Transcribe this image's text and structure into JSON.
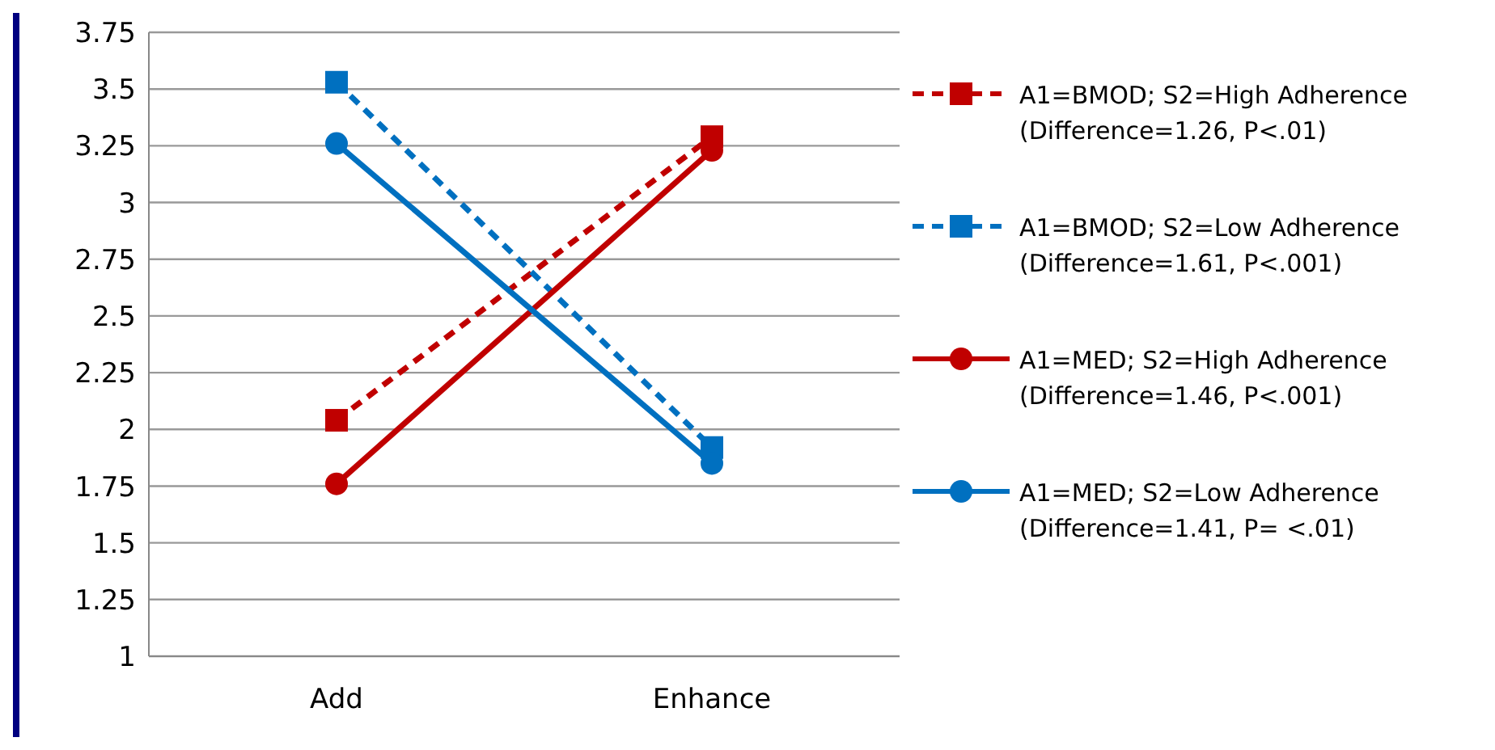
{
  "chart_data": {
    "type": "line",
    "categories": [
      "Add",
      "Enhance"
    ],
    "ylim": [
      1,
      3.75
    ],
    "yticks": [
      1,
      1.25,
      1.5,
      1.75,
      2,
      2.25,
      2.5,
      2.75,
      3,
      3.25,
      3.5,
      3.75
    ],
    "grid": "y",
    "legend": "right",
    "series": [
      {
        "name": "A1=BMOD; S2=High Adherence\n(Difference=1.26, P<.01)",
        "color": "#c00000",
        "values": [
          2.04,
          3.29
        ],
        "marker": "square",
        "line_style": "dashed"
      },
      {
        "name": "A1=BMOD; S2=Low Adherence\n(Difference=1.61, P<.001)",
        "color": "#0070c0",
        "values": [
          3.53,
          1.92
        ],
        "marker": "square",
        "line_style": "dashed"
      },
      {
        "name": "A1=MED; S2=High Adherence\n(Difference=1.46, P<.001)",
        "color": "#c00000",
        "values": [
          1.76,
          3.23
        ],
        "marker": "circle",
        "line_style": "solid"
      },
      {
        "name": "A1=MED; S2=Low Adherence\n(Difference=1.41, P= <.01)",
        "color": "#0070c0",
        "values": [
          3.26,
          1.85
        ],
        "marker": "circle",
        "line_style": "solid"
      }
    ]
  }
}
